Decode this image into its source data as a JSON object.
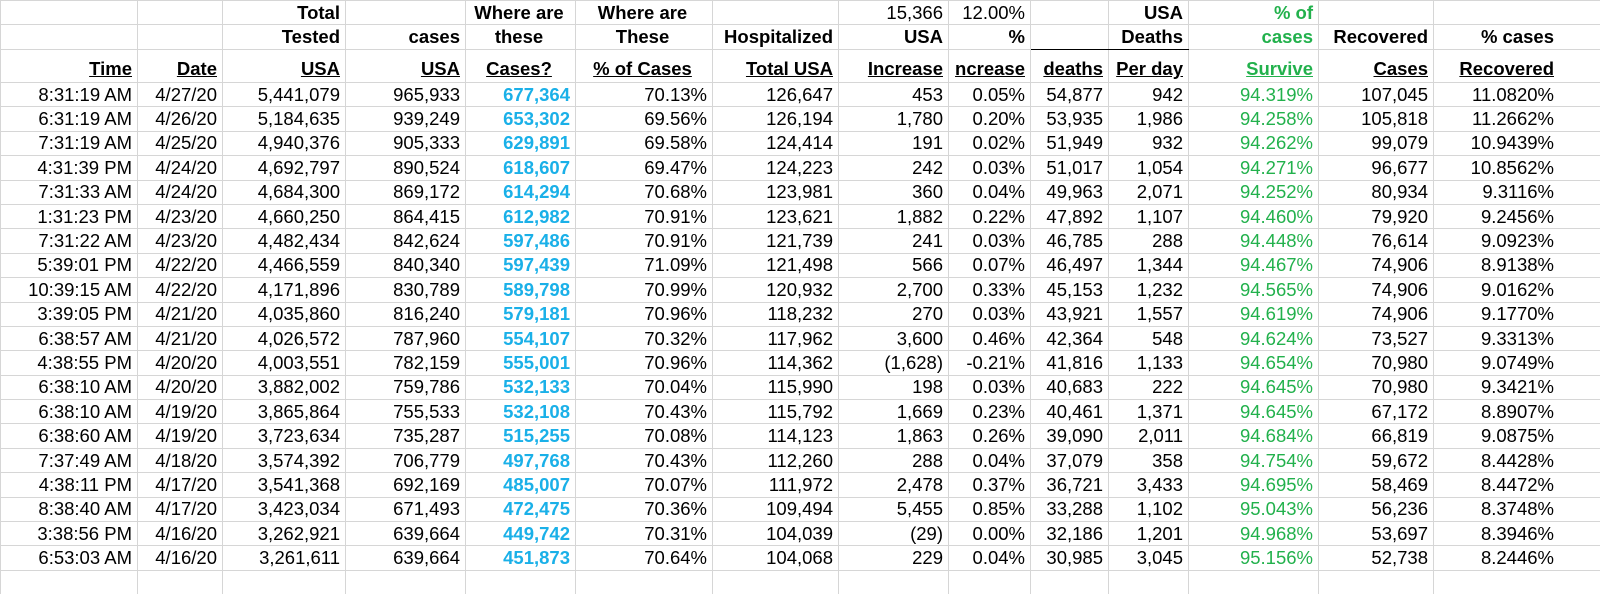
{
  "header_rows": [
    [
      null,
      null,
      "Total",
      null,
      "Where are",
      "Where are",
      null,
      "15,366",
      "12.00%",
      null,
      "USA",
      "% of",
      null,
      null
    ],
    [
      null,
      null,
      "Tested",
      "cases",
      "these",
      "These",
      "Hospitalized",
      "USA",
      "%",
      null,
      "Deaths",
      "cases",
      "Recovered",
      "% cases"
    ],
    [
      "Time",
      "Date",
      "USA",
      "USA",
      "Cases?",
      "% of Cases",
      "Total USA",
      "Increase",
      "ncrease",
      "deaths",
      "Per day",
      "Survive",
      "Cases",
      "Recovered"
    ]
  ],
  "rows": [
    [
      "8:31:19 AM",
      "4/27/20",
      "5,441,079",
      "965,933",
      "677,364",
      "70.13%",
      "126,647",
      "453",
      "0.05%",
      "54,877",
      "942",
      "94.319%",
      "107,045",
      "11.0820%"
    ],
    [
      "6:31:19 AM",
      "4/26/20",
      "5,184,635",
      "939,249",
      "653,302",
      "69.56%",
      "126,194",
      "1,780",
      "0.20%",
      "53,935",
      "1,986",
      "94.258%",
      "105,818",
      "11.2662%"
    ],
    [
      "7:31:19 AM",
      "4/25/20",
      "4,940,376",
      "905,333",
      "629,891",
      "69.58%",
      "124,414",
      "191",
      "0.02%",
      "51,949",
      "932",
      "94.262%",
      "99,079",
      "10.9439%"
    ],
    [
      "4:31:39 PM",
      "4/24/20",
      "4,692,797",
      "890,524",
      "618,607",
      "69.47%",
      "124,223",
      "242",
      "0.03%",
      "51,017",
      "1,054",
      "94.271%",
      "96,677",
      "10.8562%"
    ],
    [
      "7:31:33 AM",
      "4/24/20",
      "4,684,300",
      "869,172",
      "614,294",
      "70.68%",
      "123,981",
      "360",
      "0.04%",
      "49,963",
      "2,071",
      "94.252%",
      "80,934",
      "9.3116%"
    ],
    [
      "1:31:23 PM",
      "4/23/20",
      "4,660,250",
      "864,415",
      "612,982",
      "70.91%",
      "123,621",
      "1,882",
      "0.22%",
      "47,892",
      "1,107",
      "94.460%",
      "79,920",
      "9.2456%"
    ],
    [
      "7:31:22 AM",
      "4/23/20",
      "4,482,434",
      "842,624",
      "597,486",
      "70.91%",
      "121,739",
      "241",
      "0.03%",
      "46,785",
      "288",
      "94.448%",
      "76,614",
      "9.0923%"
    ],
    [
      "5:39:01 PM",
      "4/22/20",
      "4,466,559",
      "840,340",
      "597,439",
      "71.09%",
      "121,498",
      "566",
      "0.07%",
      "46,497",
      "1,344",
      "94.467%",
      "74,906",
      "8.9138%"
    ],
    [
      "10:39:15 AM",
      "4/22/20",
      "4,171,896",
      "830,789",
      "589,798",
      "70.99%",
      "120,932",
      "2,700",
      "0.33%",
      "45,153",
      "1,232",
      "94.565%",
      "74,906",
      "9.0162%"
    ],
    [
      "3:39:05 PM",
      "4/21/20",
      "4,035,860",
      "816,240",
      "579,181",
      "70.96%",
      "118,232",
      "270",
      "0.03%",
      "43,921",
      "1,557",
      "94.619%",
      "74,906",
      "9.1770%"
    ],
    [
      "6:38:57 AM",
      "4/21/20",
      "4,026,572",
      "787,960",
      "554,107",
      "70.32%",
      "117,962",
      "3,600",
      "0.46%",
      "42,364",
      "548",
      "94.624%",
      "73,527",
      "9.3313%"
    ],
    [
      "4:38:55 PM",
      "4/20/20",
      "4,003,551",
      "782,159",
      "555,001",
      "70.96%",
      "114,362",
      "(1,628)",
      "-0.21%",
      "41,816",
      "1,133",
      "94.654%",
      "70,980",
      "9.0749%"
    ],
    [
      "6:38:10 AM",
      "4/20/20",
      "3,882,002",
      "759,786",
      "532,133",
      "70.04%",
      "115,990",
      "198",
      "0.03%",
      "40,683",
      "222",
      "94.645%",
      "70,980",
      "9.3421%"
    ],
    [
      "6:38:10 AM",
      "4/19/20",
      "3,865,864",
      "755,533",
      "532,108",
      "70.43%",
      "115,792",
      "1,669",
      "0.23%",
      "40,461",
      "1,371",
      "94.645%",
      "67,172",
      "8.8907%"
    ],
    [
      "6:38:60 AM",
      "4/19/20",
      "3,723,634",
      "735,287",
      "515,255",
      "70.08%",
      "114,123",
      "1,863",
      "0.26%",
      "39,090",
      "2,011",
      "94.684%",
      "66,819",
      "9.0875%"
    ],
    [
      "7:37:49 AM",
      "4/18/20",
      "3,574,392",
      "706,779",
      "497,768",
      "70.43%",
      "112,260",
      "288",
      "0.04%",
      "37,079",
      "358",
      "94.754%",
      "59,672",
      "8.4428%"
    ],
    [
      "4:38:11 PM",
      "4/17/20",
      "3,541,368",
      "692,169",
      "485,007",
      "70.07%",
      "111,972",
      "2,478",
      "0.37%",
      "36,721",
      "3,433",
      "94.695%",
      "58,469",
      "8.4472%"
    ],
    [
      "8:38:40 AM",
      "4/17/20",
      "3,423,034",
      "671,493",
      "472,475",
      "70.36%",
      "109,494",
      "5,455",
      "0.85%",
      "33,288",
      "1,102",
      "95.043%",
      "56,236",
      "8.3748%"
    ],
    [
      "3:38:56 PM",
      "4/16/20",
      "3,262,921",
      "639,664",
      "449,742",
      "70.31%",
      "104,039",
      "(29)",
      "0.00%",
      "32,186",
      "1,201",
      "94.968%",
      "53,697",
      "8.3946%"
    ],
    [
      "6:53:03 AM",
      "4/16/20",
      "3,261,611",
      "639,664",
      "451,873",
      "70.64%",
      "104,068",
      "229",
      "0.04%",
      "30,985",
      "3,045",
      "95.156%",
      "52,738",
      "8.2446%"
    ]
  ]
}
